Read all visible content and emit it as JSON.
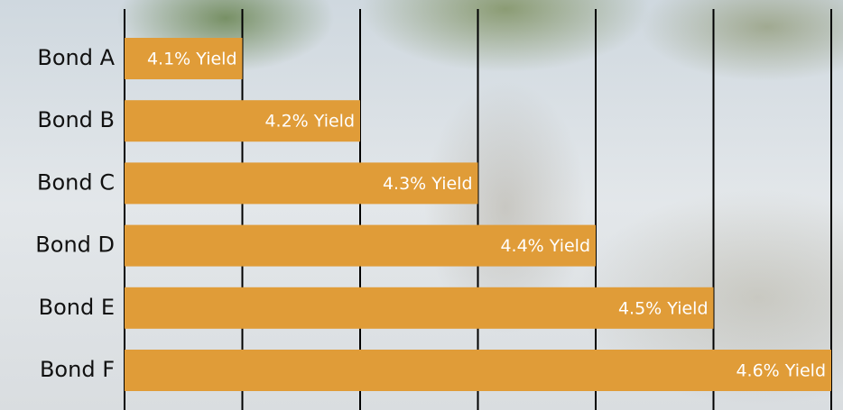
{
  "chart_data": {
    "type": "bar",
    "orientation": "horizontal",
    "categories": [
      "Bond A",
      "Bond B",
      "Bond C",
      "Bond D",
      "Bond E",
      "Bond F"
    ],
    "values": [
      4.1,
      4.2,
      4.3,
      4.4,
      4.5,
      4.6
    ],
    "value_labels": [
      "4.1% Yield",
      "4.2% Yield",
      "4.3% Yield",
      "4.4% Yield",
      "4.5% Yield",
      "4.6% Yield"
    ],
    "color": "#e09c38",
    "xlim": [
      4.0,
      4.6
    ],
    "xticks": [
      4.0,
      4.1,
      4.2,
      4.3,
      4.4,
      4.5,
      4.6
    ],
    "grid": true
  }
}
